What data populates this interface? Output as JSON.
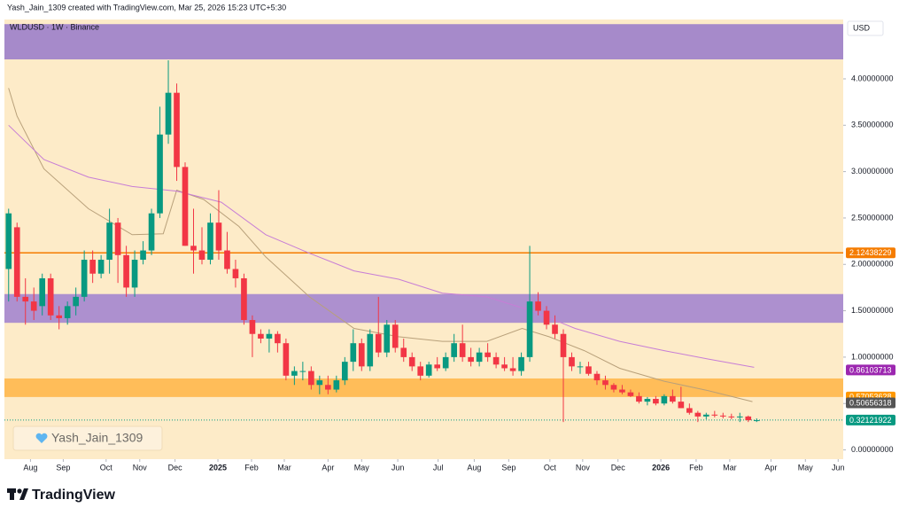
{
  "header": {
    "attribution": "Yash_Jain_1309 created with TradingView.com, Mar 25, 2026 15:23 UTC+5:30",
    "symbol": "WLDUSD · 1W · Binance",
    "currency": "USD",
    "watermark": "Yash_Jain_1309",
    "brand": "TradingView"
  },
  "chart_data": {
    "type": "candlestick",
    "background": "#fdebc8",
    "up_color": "#089981",
    "down_color": "#f23645",
    "x": [
      0,
      1,
      2,
      3,
      4,
      5,
      6,
      7,
      8,
      9,
      10,
      11,
      12,
      13,
      14,
      15,
      16,
      17,
      18,
      19,
      20,
      21,
      22,
      23,
      24,
      25,
      26,
      27,
      28,
      29,
      30,
      31,
      32,
      33,
      34,
      35,
      36,
      37,
      38,
      39,
      40,
      41,
      42,
      43,
      44,
      45,
      46,
      47,
      48,
      49,
      50,
      51,
      52,
      53,
      54,
      55,
      56,
      57,
      58,
      59,
      60,
      61,
      62,
      63,
      64,
      65,
      66,
      67,
      68,
      69,
      70,
      71,
      72,
      73,
      74,
      75,
      76,
      77,
      78,
      79,
      80,
      81,
      82,
      83,
      84,
      85,
      86,
      87,
      88,
      89
    ],
    "ohlc": [
      [
        1.95,
        2.6,
        1.6,
        2.55
      ],
      [
        2.4,
        2.45,
        1.6,
        1.65
      ],
      [
        1.65,
        1.85,
        1.35,
        1.6
      ],
      [
        1.6,
        1.75,
        1.4,
        1.5
      ],
      [
        1.55,
        1.9,
        1.45,
        1.85
      ],
      [
        1.85,
        1.9,
        1.4,
        1.45
      ],
      [
        1.45,
        1.55,
        1.3,
        1.42
      ],
      [
        1.42,
        1.6,
        1.35,
        1.55
      ],
      [
        1.55,
        1.75,
        1.45,
        1.65
      ],
      [
        1.65,
        2.15,
        1.6,
        2.05
      ],
      [
        2.05,
        2.15,
        1.8,
        1.9
      ],
      [
        1.9,
        2.1,
        1.85,
        2.05
      ],
      [
        2.05,
        2.6,
        1.9,
        2.45
      ],
      [
        2.45,
        2.5,
        1.8,
        2.1
      ],
      [
        2.1,
        2.2,
        1.65,
        1.75
      ],
      [
        1.75,
        2.15,
        1.65,
        2.05
      ],
      [
        2.05,
        2.25,
        2.0,
        2.15
      ],
      [
        2.15,
        2.6,
        2.1,
        2.55
      ],
      [
        2.55,
        3.7,
        2.5,
        3.4
      ],
      [
        3.4,
        4.2,
        3.3,
        3.85
      ],
      [
        3.85,
        3.95,
        2.9,
        3.05
      ],
      [
        3.05,
        3.1,
        2.2,
        2.2
      ],
      [
        2.2,
        2.6,
        1.9,
        2.15
      ],
      [
        2.15,
        2.4,
        2.0,
        2.05
      ],
      [
        2.05,
        2.55,
        2.0,
        2.45
      ],
      [
        2.45,
        2.8,
        2.05,
        2.15
      ],
      [
        2.15,
        2.35,
        1.9,
        1.95
      ],
      [
        1.95,
        2.05,
        1.75,
        1.85
      ],
      [
        1.85,
        1.9,
        1.35,
        1.4
      ],
      [
        1.4,
        1.45,
        1.0,
        1.25
      ],
      [
        1.25,
        1.3,
        1.15,
        1.2
      ],
      [
        1.2,
        1.3,
        1.05,
        1.25
      ],
      [
        1.25,
        1.28,
        1.05,
        1.15
      ],
      [
        1.15,
        1.2,
        0.75,
        0.8
      ],
      [
        0.8,
        0.9,
        0.7,
        0.85
      ],
      [
        0.85,
        0.95,
        0.75,
        0.85
      ],
      [
        0.85,
        0.9,
        0.65,
        0.7
      ],
      [
        0.7,
        0.8,
        0.6,
        0.75
      ],
      [
        0.7,
        0.8,
        0.6,
        0.65
      ],
      [
        0.65,
        0.8,
        0.62,
        0.75
      ],
      [
        0.75,
        1.0,
        0.7,
        0.95
      ],
      [
        0.95,
        1.3,
        0.85,
        1.15
      ],
      [
        1.15,
        1.2,
        0.85,
        0.9
      ],
      [
        0.9,
        1.3,
        0.85,
        1.25
      ],
      [
        1.25,
        1.65,
        1.0,
        1.05
      ],
      [
        1.05,
        1.4,
        1.0,
        1.35
      ],
      [
        1.35,
        1.4,
        1.05,
        1.1
      ],
      [
        1.1,
        1.2,
        0.95,
        1.0
      ],
      [
        1.0,
        1.05,
        0.85,
        0.9
      ],
      [
        0.9,
        0.95,
        0.75,
        0.8
      ],
      [
        0.8,
        0.95,
        0.78,
        0.92
      ],
      [
        0.92,
        1.0,
        0.85,
        0.88
      ],
      [
        0.88,
        1.05,
        0.85,
        1.0
      ],
      [
        1.0,
        1.25,
        0.95,
        1.15
      ],
      [
        1.15,
        1.35,
        0.95,
        1.0
      ],
      [
        1.0,
        1.1,
        0.9,
        0.95
      ],
      [
        0.95,
        1.1,
        0.9,
        1.05
      ],
      [
        1.05,
        1.15,
        0.95,
        1.0
      ],
      [
        1.0,
        1.05,
        0.88,
        0.92
      ],
      [
        0.92,
        1.0,
        0.85,
        0.88
      ],
      [
        0.88,
        1.0,
        0.8,
        0.85
      ],
      [
        0.85,
        1.05,
        0.8,
        1.0
      ],
      [
        1.0,
        2.2,
        0.95,
        1.6
      ],
      [
        1.6,
        1.7,
        1.45,
        1.5
      ],
      [
        1.5,
        1.55,
        1.3,
        1.35
      ],
      [
        1.35,
        1.45,
        1.2,
        1.25
      ],
      [
        1.25,
        1.3,
        0.3,
        1.0
      ],
      [
        1.0,
        1.05,
        0.85,
        0.9
      ],
      [
        0.9,
        0.95,
        0.82,
        0.9
      ],
      [
        0.9,
        0.95,
        0.8,
        0.82
      ],
      [
        0.82,
        0.85,
        0.7,
        0.75
      ],
      [
        0.75,
        0.8,
        0.65,
        0.7
      ],
      [
        0.7,
        0.72,
        0.62,
        0.65
      ],
      [
        0.65,
        0.7,
        0.6,
        0.62
      ],
      [
        0.62,
        0.65,
        0.57,
        0.58
      ],
      [
        0.58,
        0.62,
        0.5,
        0.52
      ],
      [
        0.52,
        0.57,
        0.48,
        0.55
      ],
      [
        0.55,
        0.58,
        0.48,
        0.5
      ],
      [
        0.5,
        0.6,
        0.48,
        0.58
      ],
      [
        0.58,
        0.65,
        0.5,
        0.52
      ],
      [
        0.52,
        0.68,
        0.45,
        0.45
      ],
      [
        0.45,
        0.5,
        0.38,
        0.4
      ],
      [
        0.4,
        0.42,
        0.3,
        0.36
      ],
      [
        0.36,
        0.4,
        0.33,
        0.38
      ],
      [
        0.38,
        0.42,
        0.35,
        0.37
      ],
      [
        0.37,
        0.4,
        0.34,
        0.36
      ],
      [
        0.36,
        0.39,
        0.33,
        0.35
      ],
      [
        0.35,
        0.4,
        0.3,
        0.36
      ],
      [
        0.36,
        0.37,
        0.3,
        0.32
      ],
      [
        0.32,
        0.34,
        0.3,
        0.32
      ]
    ],
    "lines": [
      {
        "color": "#b8a07a",
        "x": [
          0,
          1,
          4.2,
          9.5,
          14.7,
          18.4,
          20,
          23.2,
          27.4,
          30.6,
          35.8,
          41.1,
          46.4,
          51.6,
          56.9,
          61.1,
          64.3,
          68.5,
          72.7,
          78,
          83.2,
          88.5
        ],
        "values": [
          3.9,
          3.6,
          3.03,
          2.6,
          2.32,
          2.33,
          2.8,
          2.7,
          2.41,
          2.08,
          1.65,
          1.31,
          1.22,
          1.17,
          1.17,
          1.31,
          1.22,
          1.07,
          0.88,
          0.74,
          0.64,
          0.52
        ]
      },
      {
        "color": "#c77dd6",
        "x": [
          0,
          4.2,
          9.5,
          14.7,
          20,
          25.3,
          30.6,
          35.8,
          41.1,
          46.4,
          51.6,
          56.9,
          62.2,
          67.4,
          72.7,
          78,
          83.2,
          88.7
        ],
        "values": [
          3.5,
          3.13,
          2.94,
          2.84,
          2.79,
          2.67,
          2.32,
          2.12,
          1.93,
          1.84,
          1.69,
          1.65,
          1.5,
          1.31,
          1.17,
          1.07,
          0.98,
          0.89
        ]
      }
    ],
    "zones": [
      {
        "from": 4.21,
        "to": 4.59,
        "color": "#9c7fca"
      },
      {
        "from": 1.37,
        "to": 1.68,
        "color": "#a486cf"
      },
      {
        "from": 0.57,
        "to": 0.77,
        "color": "#ffb84d"
      }
    ],
    "price_levels": [
      {
        "value": 2.12438229,
        "color": "#f57c00",
        "line": "solid"
      },
      {
        "value": 0.86103713,
        "color": "#9c27b0",
        "line": "none"
      },
      {
        "value": 0.57053628,
        "color": "#ff9800",
        "line": "none"
      },
      {
        "value": 0.50656318,
        "color": "#555555",
        "line": "none"
      },
      {
        "value": 0.32121922,
        "color": "#089981",
        "line": "dotted"
      }
    ],
    "xlim": [
      -0.5,
      99.3
    ],
    "ylim": [
      -0.1,
      4.64
    ],
    "xticks": [
      {
        "value": 2.6,
        "label": "Aug"
      },
      {
        "value": 6.5,
        "label": "Sep"
      },
      {
        "value": 11.6,
        "label": "Oct"
      },
      {
        "value": 15.6,
        "label": "Nov"
      },
      {
        "value": 19.8,
        "label": "Dec"
      },
      {
        "value": 24.9,
        "label": "2025"
      },
      {
        "value": 28.9,
        "label": "Feb"
      },
      {
        "value": 32.8,
        "label": "Mar"
      },
      {
        "value": 38.0,
        "label": "Apr"
      },
      {
        "value": 42.0,
        "label": "May"
      },
      {
        "value": 46.3,
        "label": "Jun"
      },
      {
        "value": 51.1,
        "label": "Jul"
      },
      {
        "value": 55.4,
        "label": "Aug"
      },
      {
        "value": 59.5,
        "label": "Sep"
      },
      {
        "value": 64.4,
        "label": "Oct"
      },
      {
        "value": 68.3,
        "label": "Nov"
      },
      {
        "value": 72.5,
        "label": "Dec"
      },
      {
        "value": 77.6,
        "label": "2026"
      },
      {
        "value": 81.8,
        "label": "Feb"
      },
      {
        "value": 85.8,
        "label": "Mar"
      },
      {
        "value": 90.7,
        "label": "Apr"
      },
      {
        "value": 94.8,
        "label": "May"
      },
      {
        "value": 98.7,
        "label": "Jun"
      }
    ],
    "yticks": [
      {
        "value": 0,
        "label": "0.00000000"
      },
      {
        "value": 0.5,
        "label": "0.50000000"
      },
      {
        "value": 1,
        "label": "1.00000000"
      },
      {
        "value": 1.5,
        "label": "1.50000000"
      },
      {
        "value": 2,
        "label": "2.00000000"
      },
      {
        "value": 2.5,
        "label": "2.50000000"
      },
      {
        "value": 3,
        "label": "3.00000000"
      },
      {
        "value": 3.5,
        "label": "3.50000000"
      },
      {
        "value": 4,
        "label": "4.00000000"
      }
    ]
  }
}
